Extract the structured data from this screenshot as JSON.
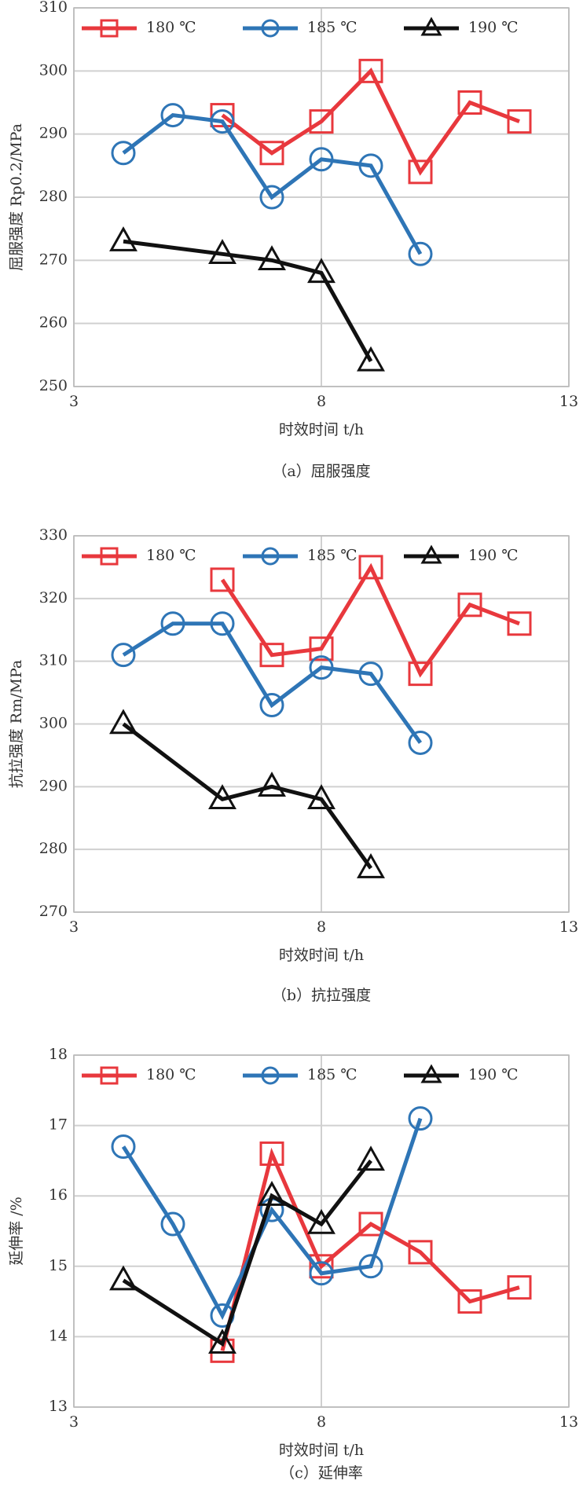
{
  "chart_data": [
    {
      "type": "line",
      "caption": "（a）屈服强度",
      "x_label": "时效时间 t/h",
      "y_label": "屈服强度 Rp0.2/MPa",
      "xlim": [
        3,
        13
      ],
      "xticks": [
        3,
        8,
        13
      ],
      "ylim": [
        250,
        310
      ],
      "yticks": [
        250,
        260,
        270,
        280,
        290,
        300,
        310
      ],
      "grid": true,
      "series": [
        {
          "name": "180 ℃",
          "color": "#e8383d",
          "marker": "square",
          "x": [
            6,
            7,
            8,
            9,
            10,
            11,
            12
          ],
          "values": [
            293,
            287,
            292,
            300,
            284,
            295,
            292
          ]
        },
        {
          "name": "185 ℃",
          "color": "#2e75b6",
          "marker": "circle",
          "x": [
            4,
            5,
            6,
            7,
            8,
            9,
            10
          ],
          "values": [
            287,
            293,
            292,
            280,
            286,
            285,
            271
          ]
        },
        {
          "name": "190 ℃",
          "color": "#111111",
          "marker": "triangle",
          "x": [
            4,
            6,
            7,
            8,
            9
          ],
          "values": [
            273,
            271,
            270,
            268,
            254
          ]
        }
      ]
    },
    {
      "type": "line",
      "caption": "（b）抗拉强度",
      "x_label": "时效时间 t/h",
      "y_label": "抗拉强度 Rm/MPa",
      "xlim": [
        3,
        13
      ],
      "xticks": [
        3,
        8,
        13
      ],
      "ylim": [
        270,
        330
      ],
      "yticks": [
        270,
        280,
        290,
        300,
        310,
        320,
        330
      ],
      "grid": true,
      "series": [
        {
          "name": "180 ℃",
          "color": "#e8383d",
          "marker": "square",
          "x": [
            6,
            7,
            8,
            9,
            10,
            11,
            12
          ],
          "values": [
            323,
            311,
            312,
            325,
            308,
            319,
            316
          ]
        },
        {
          "name": "185 ℃",
          "color": "#2e75b6",
          "marker": "circle",
          "x": [
            4,
            5,
            6,
            7,
            8,
            9,
            10
          ],
          "values": [
            311,
            316,
            316,
            303,
            309,
            308,
            297
          ]
        },
        {
          "name": "190 ℃",
          "color": "#111111",
          "marker": "triangle",
          "x": [
            4,
            6,
            7,
            8,
            9
          ],
          "values": [
            300,
            288,
            290,
            288,
            277
          ]
        }
      ]
    },
    {
      "type": "line",
      "caption": "（c）延伸率",
      "x_label": "时效时间 t/h",
      "y_label": "延伸率 /%",
      "xlim": [
        3,
        13
      ],
      "xticks": [
        3,
        8,
        13
      ],
      "ylim": [
        13,
        18
      ],
      "yticks": [
        13,
        14,
        15,
        16,
        17,
        18
      ],
      "grid": true,
      "series": [
        {
          "name": "180 ℃",
          "color": "#e8383d",
          "marker": "square",
          "x": [
            6,
            7,
            8,
            9,
            10,
            11,
            12
          ],
          "values": [
            13.8,
            16.6,
            15.0,
            15.6,
            15.2,
            14.5,
            14.7
          ]
        },
        {
          "name": "185 ℃",
          "color": "#2e75b6",
          "marker": "circle",
          "x": [
            4,
            5,
            6,
            7,
            8,
            9,
            10
          ],
          "values": [
            16.7,
            15.6,
            14.3,
            15.8,
            14.9,
            15.0,
            17.1
          ]
        },
        {
          "name": "190 ℃",
          "color": "#111111",
          "marker": "triangle",
          "x": [
            4,
            6,
            7,
            8,
            9
          ],
          "values": [
            14.8,
            13.9,
            16.0,
            15.6,
            16.5
          ]
        }
      ]
    }
  ]
}
